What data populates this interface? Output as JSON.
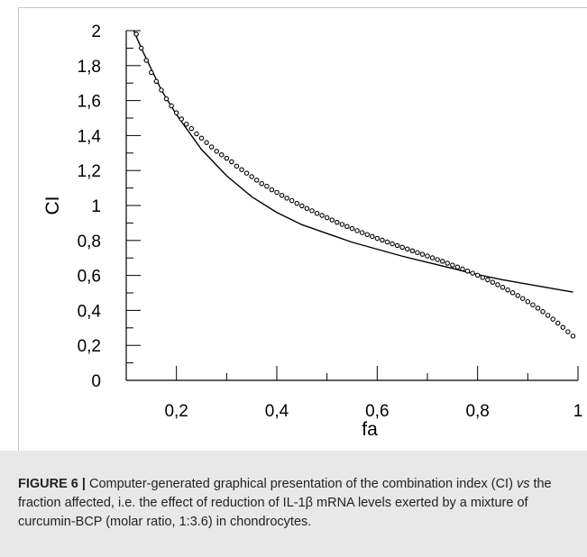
{
  "figure": {
    "caption_label": "FIGURE 6 |",
    "caption_part1": "Computer-generated graphical presentation of the combination index (CI)",
    "caption_italic": "vs",
    "caption_part2": "the fraction affected, i.e. the effect of reduction of IL-1β mRNA levels exerted by a mixture of curcumin-BCP (molar ratio, 1:3.6) in chondrocytes."
  },
  "chart_data": {
    "type": "scatter",
    "title": "",
    "xlabel": "fa",
    "ylabel": "CI",
    "xlim": [
      0.1,
      1.0
    ],
    "ylim": [
      0,
      2
    ],
    "x_ticks": [
      0.2,
      0.4,
      0.6,
      0.8,
      1.0
    ],
    "x_tick_labels": [
      "0,2",
      "0,4",
      "0,6",
      "0,8",
      "1"
    ],
    "y_ticks": [
      0,
      0.2,
      0.4,
      0.6,
      0.8,
      1.0,
      1.2,
      1.4,
      1.6,
      1.8,
      2.0
    ],
    "y_tick_labels": [
      "0",
      "0,2",
      "0,4",
      "0,6",
      "0,8",
      "1",
      "1,2",
      "1,4",
      "1,6",
      "1,8",
      "2"
    ],
    "grid": false,
    "series": [
      {
        "style": "line",
        "color": "#000000",
        "x": [
          0.115,
          0.13,
          0.15,
          0.17,
          0.2,
          0.25,
          0.3,
          0.35,
          0.4,
          0.45,
          0.5,
          0.55,
          0.6,
          0.65,
          0.7,
          0.75,
          0.8,
          0.85,
          0.9,
          0.95,
          0.99
        ],
        "y": [
          2.0,
          1.9,
          1.78,
          1.66,
          1.52,
          1.32,
          1.17,
          1.05,
          0.96,
          0.89,
          0.84,
          0.79,
          0.75,
          0.71,
          0.675,
          0.64,
          0.605,
          0.575,
          0.55,
          0.525,
          0.505
        ]
      },
      {
        "style": "markers",
        "marker": "open-circle",
        "color": "#000000",
        "x": [
          0.12,
          0.13,
          0.14,
          0.15,
          0.16,
          0.17,
          0.18,
          0.19,
          0.2,
          0.21,
          0.22,
          0.23,
          0.24,
          0.25,
          0.26,
          0.27,
          0.28,
          0.29,
          0.3,
          0.31,
          0.32,
          0.33,
          0.34,
          0.35,
          0.36,
          0.37,
          0.38,
          0.39,
          0.4,
          0.41,
          0.42,
          0.43,
          0.44,
          0.45,
          0.46,
          0.47,
          0.48,
          0.49,
          0.5,
          0.51,
          0.52,
          0.53,
          0.54,
          0.55,
          0.56,
          0.57,
          0.58,
          0.59,
          0.6,
          0.61,
          0.62,
          0.63,
          0.64,
          0.65,
          0.66,
          0.67,
          0.68,
          0.69,
          0.7,
          0.71,
          0.72,
          0.73,
          0.74,
          0.75,
          0.76,
          0.77,
          0.78,
          0.79,
          0.8,
          0.81,
          0.82,
          0.83,
          0.84,
          0.85,
          0.86,
          0.87,
          0.88,
          0.89,
          0.9,
          0.91,
          0.92,
          0.93,
          0.94,
          0.95,
          0.96,
          0.97,
          0.98,
          0.99
        ],
        "y": [
          1.98,
          1.9,
          1.83,
          1.76,
          1.71,
          1.66,
          1.61,
          1.57,
          1.53,
          1.495,
          1.465,
          1.44,
          1.41,
          1.385,
          1.36,
          1.335,
          1.31,
          1.29,
          1.27,
          1.25,
          1.225,
          1.205,
          1.185,
          1.165,
          1.145,
          1.125,
          1.11,
          1.09,
          1.075,
          1.058,
          1.042,
          1.028,
          1.012,
          0.998,
          0.983,
          0.97,
          0.955,
          0.943,
          0.93,
          0.917,
          0.904,
          0.892,
          0.88,
          0.868,
          0.856,
          0.845,
          0.834,
          0.823,
          0.812,
          0.802,
          0.791,
          0.781,
          0.771,
          0.761,
          0.751,
          0.741,
          0.731,
          0.721,
          0.711,
          0.701,
          0.691,
          0.681,
          0.67,
          0.659,
          0.648,
          0.637,
          0.625,
          0.613,
          0.601,
          0.588,
          0.575,
          0.561,
          0.547,
          0.532,
          0.517,
          0.501,
          0.485,
          0.468,
          0.45,
          0.432,
          0.413,
          0.393,
          0.372,
          0.35,
          0.327,
          0.303,
          0.278,
          0.253
        ]
      }
    ]
  }
}
